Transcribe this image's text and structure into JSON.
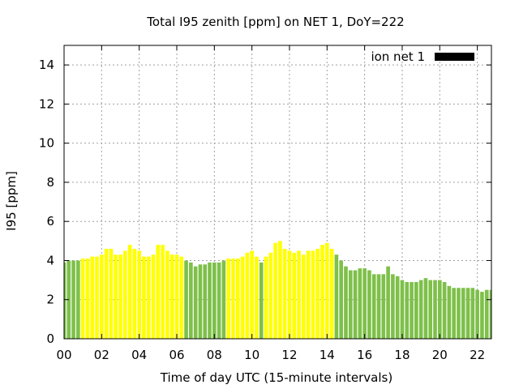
{
  "chart_data": {
    "type": "bar",
    "title": "Total I95 zenith [ppm] on NET 1, DoY=222",
    "xlabel": "Time of day UTC (15-minute intervals)",
    "ylabel": "I95 [ppm]",
    "xlim": [
      0,
      22.75
    ],
    "ylim": [
      0,
      15
    ],
    "x_ticks": [
      "00",
      "02",
      "04",
      "06",
      "08",
      "10",
      "12",
      "14",
      "16",
      "18",
      "20",
      "22"
    ],
    "y_ticks": [
      "0",
      "2",
      "4",
      "6",
      "8",
      "10",
      "12",
      "14"
    ],
    "grid": true,
    "legend": {
      "position": "top-right",
      "entries": [
        {
          "label": "ion net 1",
          "color": "#000000"
        }
      ]
    },
    "colors": {
      "green": "#7ec04a",
      "yellow": "#ffff00"
    },
    "interval_hours": 0.25,
    "series": [
      {
        "name": "ion net 1",
        "values": [
          3.9,
          4.0,
          4.0,
          4.0,
          4.1,
          4.1,
          4.2,
          4.2,
          4.3,
          4.6,
          4.6,
          4.3,
          4.3,
          4.5,
          4.8,
          4.6,
          4.5,
          4.2,
          4.2,
          4.3,
          4.8,
          4.8,
          4.5,
          4.3,
          4.3,
          4.2,
          4.0,
          3.9,
          3.7,
          3.8,
          3.8,
          3.9,
          3.9,
          3.9,
          4.0,
          4.1,
          4.1,
          4.1,
          4.2,
          4.4,
          4.5,
          4.2,
          3.9,
          4.2,
          4.4,
          4.9,
          5.0,
          4.6,
          4.5,
          4.4,
          4.5,
          4.3,
          4.5,
          4.5,
          4.6,
          4.8,
          4.9,
          4.6,
          4.3,
          4.0,
          3.7,
          3.5,
          3.5,
          3.6,
          3.6,
          3.5,
          3.3,
          3.3,
          3.3,
          3.7,
          3.3,
          3.2,
          3.0,
          2.9,
          2.9,
          2.9,
          3.0,
          3.1,
          3.0,
          3.0,
          3.0,
          2.9,
          2.7,
          2.6,
          2.6,
          2.6,
          2.6,
          2.6,
          2.5,
          2.4,
          2.5,
          2.5
        ],
        "level": [
          "g",
          "g",
          "g",
          "g",
          "y",
          "y",
          "y",
          "y",
          "y",
          "y",
          "y",
          "y",
          "y",
          "y",
          "y",
          "y",
          "y",
          "y",
          "y",
          "y",
          "y",
          "y",
          "y",
          "y",
          "y",
          "y",
          "g",
          "g",
          "g",
          "g",
          "g",
          "g",
          "g",
          "g",
          "g",
          "y",
          "y",
          "y",
          "y",
          "y",
          "y",
          "y",
          "g",
          "y",
          "y",
          "y",
          "y",
          "y",
          "y",
          "y",
          "y",
          "y",
          "y",
          "y",
          "y",
          "y",
          "y",
          "y",
          "g",
          "g",
          "g",
          "g",
          "g",
          "g",
          "g",
          "g",
          "g",
          "g",
          "g",
          "g",
          "g",
          "g",
          "g",
          "g",
          "g",
          "g",
          "g",
          "g",
          "g",
          "g",
          "g",
          "g",
          "g",
          "g",
          "g",
          "g",
          "g",
          "g",
          "g",
          "g",
          "g",
          "g"
        ]
      }
    ]
  }
}
